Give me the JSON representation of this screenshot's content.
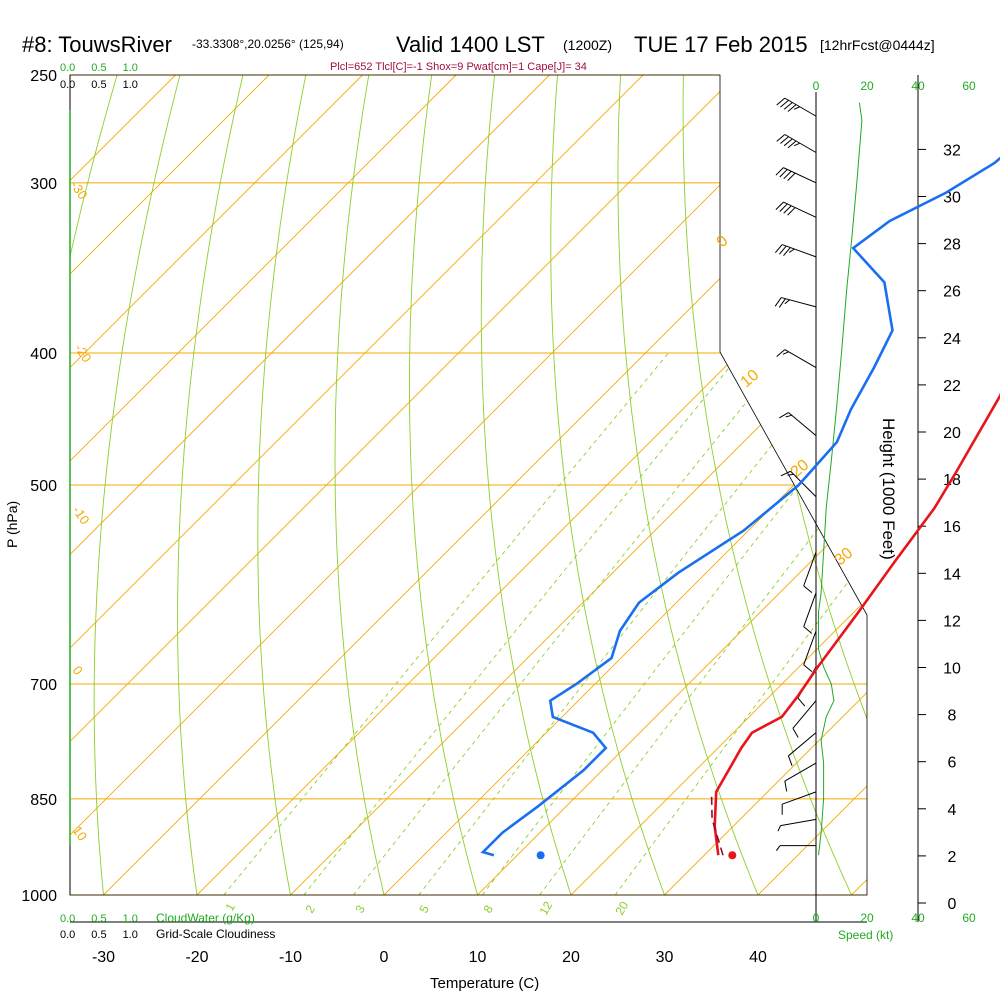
{
  "header": {
    "station": "#8: TouwsRiver",
    "coords": "-33.3308°,20.0256° (125,94)",
    "valid": "Valid 1400 LST",
    "zulu": "(1200Z)",
    "date": "TUE 17 Feb 2015",
    "forecast": "[12hrFcst@0444z]",
    "indices": "Plcl=652 Tlcl[C]=-1 Shox=9 Pwat[cm]=1 Cape[J]= 34"
  },
  "colors": {
    "isotherm": "#f5a800",
    "dry_adiabat": "#8ccf2a",
    "mixing_ratio": "#8ccf2a",
    "temperature": "#e8141c",
    "dewpoint": "#1a6ff0",
    "parcel": "#8b1030",
    "green_text": "#22aa22",
    "indices_text": "#a01040",
    "wind": "#000000"
  },
  "chart_data": {
    "type": "line",
    "title": "Valid 1400 LST (1200Z) TUE 17 Feb 2015",
    "xlabel": "Temperature (C)",
    "ylabel": "P (hPa)",
    "y2label": "Height (1000 Feet)",
    "xlim": [
      -34,
      35
    ],
    "ylim": [
      1000,
      250
    ],
    "xticks": [
      -30,
      -20,
      -10,
      0,
      10,
      20,
      30,
      40
    ],
    "yticks": [
      250,
      300,
      400,
      500,
      700,
      850,
      1000
    ],
    "height_ticks": [
      0,
      2,
      4,
      6,
      8,
      10,
      12,
      14,
      16,
      18,
      20,
      22,
      24,
      26,
      28,
      30,
      32
    ],
    "isotherm_labels": [
      "-30",
      "-20",
      "-10",
      "0",
      "10",
      "20",
      "30"
    ],
    "mixing_ratio_labels": [
      "1",
      "2",
      "3",
      "5",
      "8",
      "12",
      "20"
    ],
    "cloudwater_scale": [
      "0.0",
      "0.5",
      "1.0"
    ],
    "cloudwater_label": "CloudWater (g/Kg)",
    "cloudiness_scale": [
      "0.0",
      "0.5",
      "1.0"
    ],
    "cloudiness_label": "Grid-Scale Cloudiness",
    "speed_ticks": [
      "0",
      "20",
      "40",
      "60"
    ],
    "speed_label": "Speed (kt)",
    "series": [
      {
        "name": "Temperature",
        "color": "#e8141c",
        "points": [
          [
            31.5,
            935
          ],
          [
            28,
            890
          ],
          [
            24.5,
            840
          ],
          [
            22.5,
            780
          ],
          [
            22,
            760
          ],
          [
            23.5,
            740
          ],
          [
            23,
            715
          ],
          [
            22,
            680
          ],
          [
            20.5,
            620
          ],
          [
            19,
            570
          ],
          [
            17.5,
            520
          ],
          [
            16,
            490
          ],
          [
            12.5,
            430
          ],
          [
            9.5,
            395
          ],
          [
            6.5,
            355
          ],
          [
            3.5,
            320
          ],
          [
            0.5,
            290
          ],
          [
            -3,
            262
          ]
        ]
      },
      {
        "name": "Dewpoint",
        "color": "#1a6ff0",
        "points": [
          [
            7.5,
            935
          ],
          [
            6,
            930
          ],
          [
            6,
            900
          ],
          [
            7,
            860
          ],
          [
            8,
            810
          ],
          [
            8,
            780
          ],
          [
            5,
            760
          ],
          [
            -1,
            740
          ],
          [
            -3,
            720
          ],
          [
            -2,
            700
          ],
          [
            -1,
            670
          ],
          [
            -3,
            640
          ],
          [
            -4,
            610
          ],
          [
            -3,
            580
          ],
          [
            -0.5,
            540
          ],
          [
            0.5,
            500
          ],
          [
            0,
            465
          ],
          [
            -2,
            440
          ],
          [
            -4,
            410
          ],
          [
            -6,
            385
          ],
          [
            -12,
            355
          ],
          [
            -19,
            335
          ],
          [
            -18,
            320
          ],
          [
            -15,
            305
          ],
          [
            -13,
            290
          ],
          [
            -12,
            265
          ]
        ]
      },
      {
        "name": "Parcel",
        "color": "#8b1030",
        "points": [
          [
            32,
            935
          ],
          [
            27,
            880
          ],
          [
            24,
            840
          ]
        ]
      }
    ],
    "surface_temperature": 33,
    "surface_dewpoint": 12.5,
    "surface_pressure": 935,
    "wind_speed_profile": [
      [
        1,
        935
      ],
      [
        2,
        900
      ],
      [
        3,
        850
      ],
      [
        3,
        800
      ],
      [
        2,
        770
      ],
      [
        4,
        740
      ],
      [
        7,
        720
      ],
      [
        6,
        700
      ],
      [
        3,
        680
      ],
      [
        1,
        660
      ],
      [
        1,
        640
      ],
      [
        1,
        620
      ],
      [
        2,
        600
      ],
      [
        3,
        560
      ],
      [
        4,
        520
      ],
      [
        6,
        480
      ],
      [
        8,
        440
      ],
      [
        10,
        400
      ],
      [
        12,
        360
      ],
      [
        14,
        330
      ],
      [
        16,
        300
      ],
      [
        18,
        270
      ],
      [
        17,
        262
      ]
    ],
    "cloudwater_profile": [],
    "wind_barbs": [
      {
        "p": 268,
        "dir": 300,
        "spd": 45
      },
      {
        "p": 285,
        "dir": 300,
        "spd": 45
      },
      {
        "p": 300,
        "dir": 295,
        "spd": 40
      },
      {
        "p": 318,
        "dir": 295,
        "spd": 40
      },
      {
        "p": 340,
        "dir": 290,
        "spd": 35
      },
      {
        "p": 370,
        "dir": 285,
        "spd": 25
      },
      {
        "p": 410,
        "dir": 300,
        "spd": 15
      },
      {
        "p": 460,
        "dir": 310,
        "spd": 15
      },
      {
        "p": 510,
        "dir": 315,
        "spd": 15
      },
      {
        "p": 560,
        "dir": 200,
        "spd": 10
      },
      {
        "p": 600,
        "dir": 200,
        "spd": 10
      },
      {
        "p": 640,
        "dir": 200,
        "spd": 10
      },
      {
        "p": 680,
        "dir": 210,
        "spd": 10
      },
      {
        "p": 720,
        "dir": 220,
        "spd": 10
      },
      {
        "p": 760,
        "dir": 230,
        "spd": 10
      },
      {
        "p": 800,
        "dir": 240,
        "spd": 10
      },
      {
        "p": 840,
        "dir": 250,
        "spd": 10
      },
      {
        "p": 880,
        "dir": 260,
        "spd": 5
      },
      {
        "p": 920,
        "dir": 270,
        "spd": 5
      }
    ]
  }
}
